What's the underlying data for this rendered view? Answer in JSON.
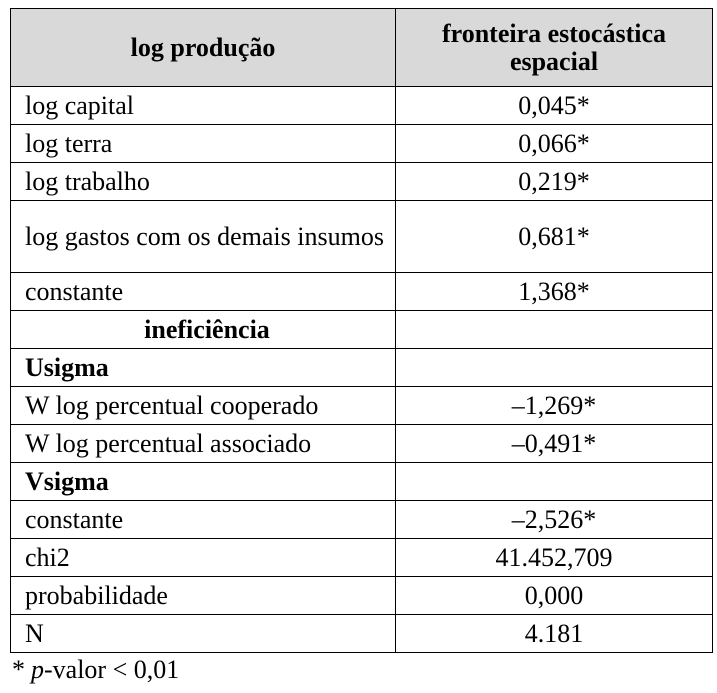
{
  "header": {
    "columns": [
      "log produção",
      "fronteira estocástica espacial"
    ]
  },
  "rows": [
    {
      "label": "log capital",
      "value": "0,045*"
    },
    {
      "label": "log terra",
      "value": "0,066*"
    },
    {
      "label": "log trabalho",
      "value": "0,219*"
    },
    {
      "label": "log gastos com os demais insumos",
      "value": "0,681*"
    },
    {
      "label": "constante",
      "value": "1,368*"
    },
    {
      "heading": "ineficiência"
    },
    {
      "subheading": "Usigma"
    },
    {
      "label": "W log percentual cooperado",
      "value": "–1,269*"
    },
    {
      "label": "W log percentual associado",
      "value": "–0,491*"
    },
    {
      "subheading": "Vsigma"
    },
    {
      "label": "constante",
      "value": "–2,526*"
    },
    {
      "label": "chi2",
      "value": "41.452,709"
    },
    {
      "label": "probabilidade",
      "value": "0,000"
    },
    {
      "label": "N",
      "value": "4.181"
    }
  ],
  "footnote": [
    "*",
    "p",
    "-valor < 0,01"
  ]
}
